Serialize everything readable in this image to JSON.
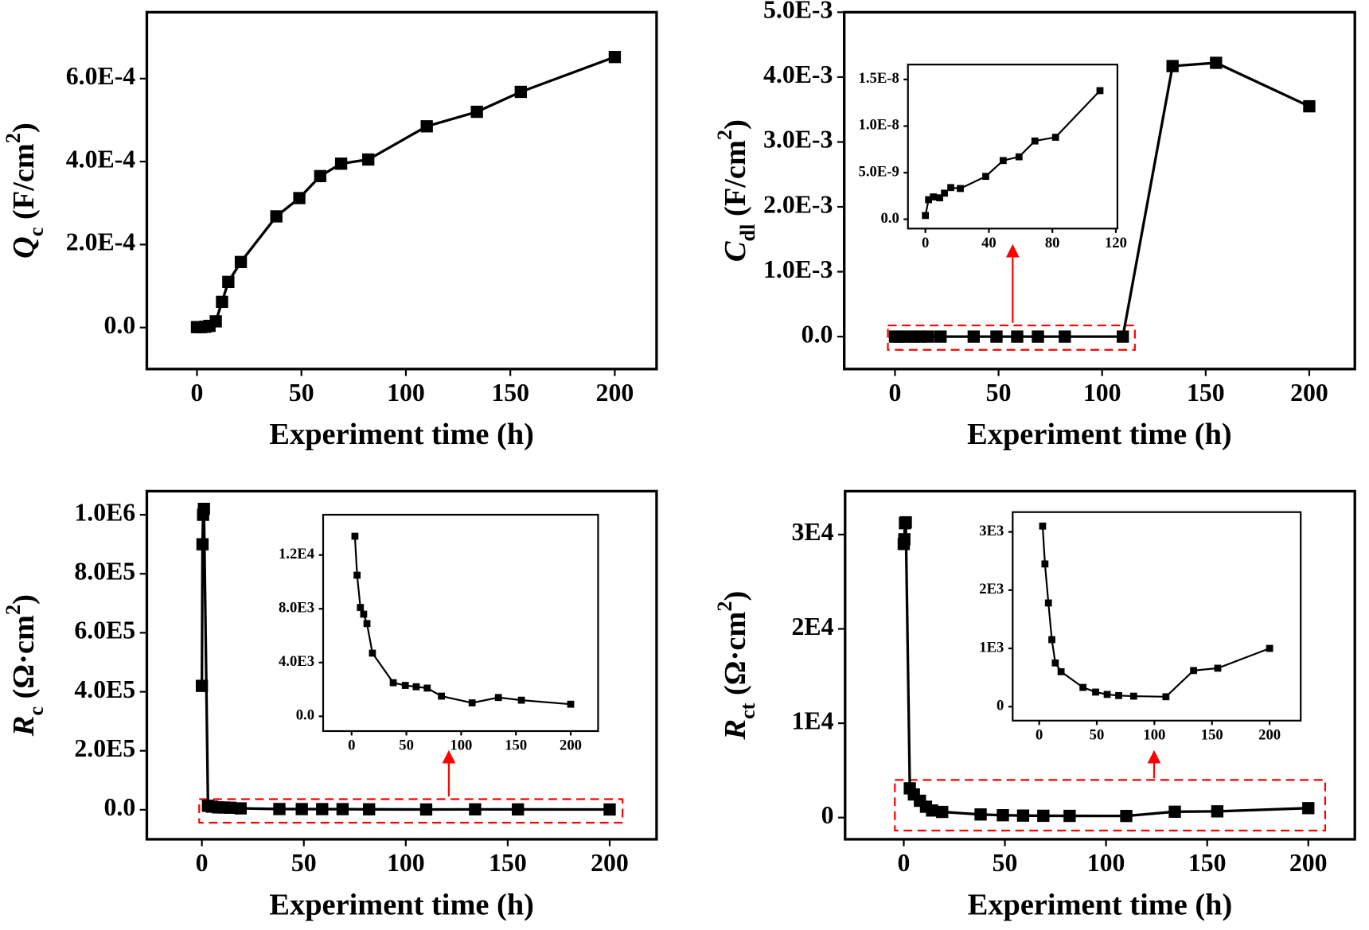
{
  "chart_data": [
    {
      "type": "line",
      "color": "#000000",
      "x": [
        0,
        2,
        4,
        6,
        9,
        12,
        15,
        21,
        38,
        49,
        59,
        69,
        82,
        110,
        134,
        155,
        200
      ],
      "values": [
        1e-06,
        1e-06,
        2e-06,
        4e-06,
        1.5e-05,
        6.2e-05,
        0.00011,
        0.000158,
        0.000268,
        0.000312,
        0.000365,
        0.000395,
        0.000405,
        0.000485,
        0.00052,
        0.000568,
        0.000652
      ],
      "xlim": [
        -24,
        220
      ],
      "ylim": [
        -0.0001,
        0.00076
      ],
      "xticks": [
        0,
        50,
        100,
        150,
        200
      ],
      "yticks": [
        {
          "value": 0,
          "label": "0.0"
        },
        {
          "value": 0.0002,
          "label": "2.0E-4"
        },
        {
          "value": 0.0004,
          "label": "4.0E-4"
        },
        {
          "value": 0.0006,
          "label": "6.0E-4"
        }
      ],
      "xlabel": "Experiment time (h)",
      "ylabel": [
        {
          "text": "Q",
          "style": "italic"
        },
        {
          "text": "c",
          "style": "sub"
        },
        {
          "text": " (F/cm"
        },
        {
          "text": "2",
          "style": "sup"
        },
        {
          "text": ")"
        }
      ]
    },
    {
      "type": "line",
      "color": "#000000",
      "x": [
        0,
        2,
        5,
        9,
        12,
        16,
        22,
        38,
        49,
        59,
        69,
        82,
        110,
        134,
        155,
        200
      ],
      "values": [
        4e-10,
        2.1e-09,
        2.4e-09,
        2.3e-09,
        2.8e-09,
        3.4e-09,
        3.3e-09,
        4.6e-09,
        6.3e-09,
        6.7e-09,
        8.4e-09,
        8.8e-09,
        1.38e-08,
        0.00417,
        0.00422,
        0.00355
      ],
      "xlim": [
        -24.5,
        222
      ],
      "ylim": [
        -0.0005,
        0.005
      ],
      "xticks": [
        0,
        50,
        100,
        150,
        200
      ],
      "yticks": [
        {
          "value": 0,
          "label": "0.0"
        },
        {
          "value": 0.001,
          "label": "1.0E-3"
        },
        {
          "value": 0.002,
          "label": "2.0E-3"
        },
        {
          "value": 0.003,
          "label": "3.0E-3"
        },
        {
          "value": 0.004,
          "label": "4.0E-3"
        },
        {
          "value": 0.005,
          "label": "5.0E-3"
        }
      ],
      "xlabel": "Experiment time (h)",
      "ylabel": [
        {
          "text": "C",
          "style": "italic"
        },
        {
          "text": "dl",
          "style": "sub"
        },
        {
          "text": " (F/cm"
        },
        {
          "text": "2",
          "style": "sup"
        },
        {
          "text": ")"
        }
      ]
    },
    {
      "type": "line",
      "color": "#000000",
      "x": [
        0,
        0.3,
        0.6,
        1,
        3,
        5,
        8,
        11,
        14,
        19,
        38,
        49,
        59,
        69,
        82,
        110,
        134,
        155,
        200
      ],
      "values": [
        420000,
        900000,
        1000000,
        1020000,
        13400,
        10500,
        8100,
        7600,
        6900,
        4700,
        2500,
        2300,
        2200,
        2100,
        1500,
        1000,
        1400,
        1200,
        900
      ],
      "xlim": [
        -27,
        223
      ],
      "ylim": [
        -100000,
        1080000
      ],
      "xticks": [
        0,
        50,
        100,
        150,
        200
      ],
      "yticks": [
        {
          "value": 0,
          "label": "0.0"
        },
        {
          "value": 200000,
          "label": "2.0E5"
        },
        {
          "value": 400000,
          "label": "4.0E5"
        },
        {
          "value": 600000,
          "label": "6.0E5"
        },
        {
          "value": 800000,
          "label": "8.0E5"
        },
        {
          "value": 1000000,
          "label": "1.0E6"
        }
      ],
      "xlabel": "Experiment time (h)",
      "ylabel": [
        {
          "text": "R",
          "style": "italic"
        },
        {
          "text": "c",
          "style": "sub"
        },
        {
          "text": " (Ω·cm"
        },
        {
          "text": "2",
          "style": "sup"
        },
        {
          "text": ")"
        }
      ]
    },
    {
      "type": "line",
      "color": "#000000",
      "x": [
        0,
        0.3,
        0.6,
        1,
        3,
        5,
        8,
        11,
        14,
        19,
        38,
        49,
        59,
        69,
        82,
        110,
        134,
        155,
        200
      ],
      "values": [
        29000,
        29500,
        31200,
        31300,
        3100,
        2450,
        1780,
        1150,
        750,
        600,
        330,
        250,
        210,
        190,
        180,
        170,
        620,
        660,
        1000
      ],
      "xlim": [
        -29,
        223
      ],
      "ylim": [
        -2300,
        34600
      ],
      "xticks": [
        0,
        50,
        100,
        150,
        200
      ],
      "yticks": [
        0,
        {
          "value": 10000,
          "label": "1E4"
        },
        {
          "value": 20000,
          "label": "2E4"
        },
        {
          "value": 30000,
          "label": "3E4"
        }
      ],
      "xlabel": "Experiment time (h)",
      "ylabel": [
        {
          "text": "R",
          "style": "italic"
        },
        {
          "text": "ct",
          "style": "sub"
        },
        {
          "text": " (Ω·cm"
        },
        {
          "text": "2",
          "style": "sup"
        },
        {
          "text": ")"
        }
      ]
    },
    {
      "type": "line",
      "color": "#000000",
      "x": [
        0,
        2,
        5,
        9,
        12,
        16,
        22,
        38,
        49,
        59,
        69,
        82,
        110
      ],
      "values": [
        4e-10,
        2.1e-09,
        2.4e-09,
        2.3e-09,
        2.8e-09,
        3.4e-09,
        3.3e-09,
        4.6e-09,
        6.3e-09,
        6.7e-09,
        8.4e-09,
        8.8e-09,
        1.38e-08
      ],
      "xlim": [
        -11,
        121
      ],
      "ylim": [
        -1e-09,
        1.66e-08
      ],
      "xticks": [
        0,
        40,
        80,
        120
      ],
      "yticks": [
        {
          "value": 0,
          "label": "0.0"
        },
        {
          "value": 5e-09,
          "label": "5.0E-9"
        },
        {
          "value": 1e-08,
          "label": "1.0E-8"
        },
        {
          "value": 1.5e-08,
          "label": "1.5E-8"
        }
      ]
    },
    {
      "type": "line",
      "color": "#000000",
      "x": [
        3,
        5,
        8,
        11,
        14,
        19,
        38,
        49,
        59,
        69,
        82,
        110,
        134,
        155,
        200
      ],
      "values": [
        13400,
        10500,
        8100,
        7600,
        6900,
        4700,
        2500,
        2300,
        2200,
        2100,
        1500,
        1000,
        1400,
        1200,
        900
      ],
      "xlim": [
        -26,
        225
      ],
      "ylim": [
        -1100,
        15000
      ],
      "xticks": [
        0,
        50,
        100,
        150,
        200
      ],
      "yticks": [
        {
          "value": 0,
          "label": "0.0"
        },
        {
          "value": 4000,
          "label": "4.0E3"
        },
        {
          "value": 8000,
          "label": "8.0E3"
        },
        {
          "value": 12000,
          "label": "1.2E4"
        }
      ]
    },
    {
      "type": "line",
      "color": "#000000",
      "x": [
        3,
        5,
        8,
        11,
        14,
        19,
        38,
        49,
        59,
        69,
        82,
        110,
        134,
        155,
        200
      ],
      "values": [
        3100,
        2450,
        1780,
        1150,
        750,
        600,
        330,
        250,
        210,
        190,
        180,
        170,
        620,
        660,
        1000
      ],
      "xlim": [
        -23,
        227
      ],
      "ylim": [
        -240,
        3340
      ],
      "xticks": [
        0,
        50,
        100,
        150,
        200
      ],
      "yticks": [
        0,
        {
          "value": 1000,
          "label": "1E3"
        },
        {
          "value": 2000,
          "label": "2E3"
        },
        {
          "value": 3000,
          "label": "3E3"
        }
      ]
    }
  ]
}
